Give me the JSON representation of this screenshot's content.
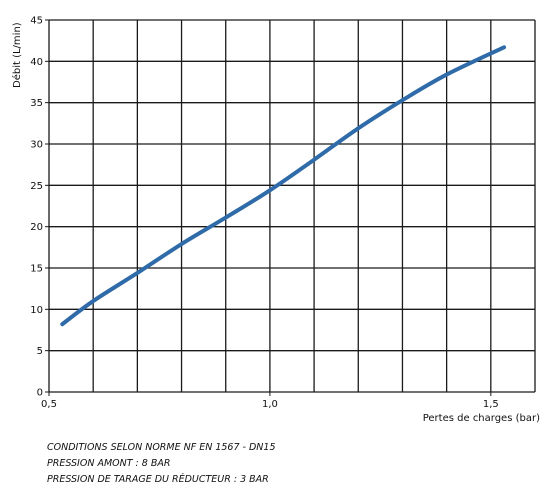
{
  "chart_data": {
    "type": "line",
    "title": "",
    "xlabel": "Pertes de charges (bar)",
    "ylabel": "Débit (L/min)",
    "xlim": [
      0.5,
      1.6
    ],
    "ylim": [
      0,
      45
    ],
    "x_ticks": [
      0.5,
      1.0,
      1.5
    ],
    "x_tick_labels": [
      "0,5",
      "1,0",
      "1,5"
    ],
    "y_ticks": [
      0,
      5,
      10,
      15,
      20,
      25,
      30,
      35,
      40,
      45
    ],
    "y_tick_labels": [
      "0",
      "5",
      "10",
      "15",
      "20",
      "25",
      "30",
      "35",
      "40",
      "45"
    ],
    "grid": true,
    "series": [
      {
        "color": "#2e6ba8",
        "x": [
          0.53,
          0.6,
          0.7,
          0.8,
          0.9,
          1.0,
          1.1,
          1.2,
          1.3,
          1.4,
          1.53
        ],
        "y": [
          8.2,
          11.0,
          14.4,
          17.9,
          21.1,
          24.4,
          28.1,
          31.9,
          35.3,
          38.4,
          41.7
        ]
      }
    ]
  },
  "notes": [
    "CONDITIONS SELON NORME NF EN 1567 - DN15",
    "PRESSION AMONT : 8 BAR",
    "PRESSION DE TARAGE DU RÉDUCTEUR : 3 BAR"
  ]
}
